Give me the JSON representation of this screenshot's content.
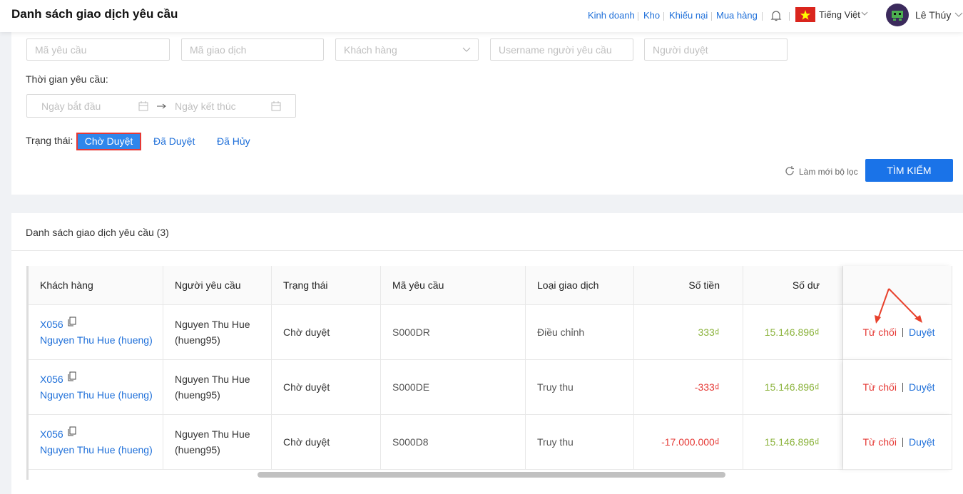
{
  "header": {
    "title": "Danh sách giao dịch yêu cầu",
    "nav": [
      "Kinh doanh",
      "Kho",
      "Khiếu nại",
      "Mua hàng"
    ],
    "language": "Tiếng Việt",
    "user": "Lê Thúy"
  },
  "filters": {
    "placeholders": [
      "Mã yêu cầu",
      "Mã giao dịch",
      "Khách hàng",
      "Username người yêu cầu",
      "Người duyệt"
    ],
    "time_label": "Thời gian yêu cầu:",
    "start_placeholder": "Ngày bắt đầu",
    "end_placeholder": "Ngày kết thúc",
    "status_label": "Trạng thái:",
    "statuses": [
      "Chờ Duyệt",
      "Đã Duyệt",
      "Đã Hủy"
    ],
    "reset": "Làm mới bộ lọc",
    "search": "TÌM KIẾM"
  },
  "table": {
    "title": "Danh sách giao dịch yêu cầu (3)",
    "columns": [
      "Khách hàng",
      "Người yêu cầu",
      "Trạng thái",
      "Mã yêu cầu",
      "Loại giao dịch",
      "Số tiền",
      "Số dư"
    ],
    "rows": [
      {
        "customer_code": "X056",
        "customer_name": "Nguyen Thu Hue (hueng)",
        "requester_name": "Nguyen Thu Hue",
        "requester_username": "(hueng95)",
        "status": "Chờ duyệt",
        "request_code": "S000DR",
        "type": "Điều chỉnh",
        "amount": "333₫",
        "balance": "15.146.896₫",
        "reject": "Từ chối",
        "approve": "Duyệt"
      },
      {
        "customer_code": "X056",
        "customer_name": "Nguyen Thu Hue (hueng)",
        "requester_name": "Nguyen Thu Hue",
        "requester_username": "(hueng95)",
        "status": "Chờ duyệt",
        "request_code": "S000DE",
        "type": "Truy thu",
        "amount": "-333₫",
        "balance": "15.146.896₫",
        "reject": "Từ chối",
        "approve": "Duyệt"
      },
      {
        "customer_code": "X056",
        "customer_name": "Nguyen Thu Hue (hueng)",
        "requester_name": "Nguyen Thu Hue",
        "requester_username": "(hueng95)",
        "status": "Chờ duyệt",
        "request_code": "S000D8",
        "type": "Truy thu",
        "amount": "-17.000.000₫",
        "balance": "15.146.896₫",
        "reject": "Từ chối",
        "approve": "Duyệt"
      }
    ]
  }
}
